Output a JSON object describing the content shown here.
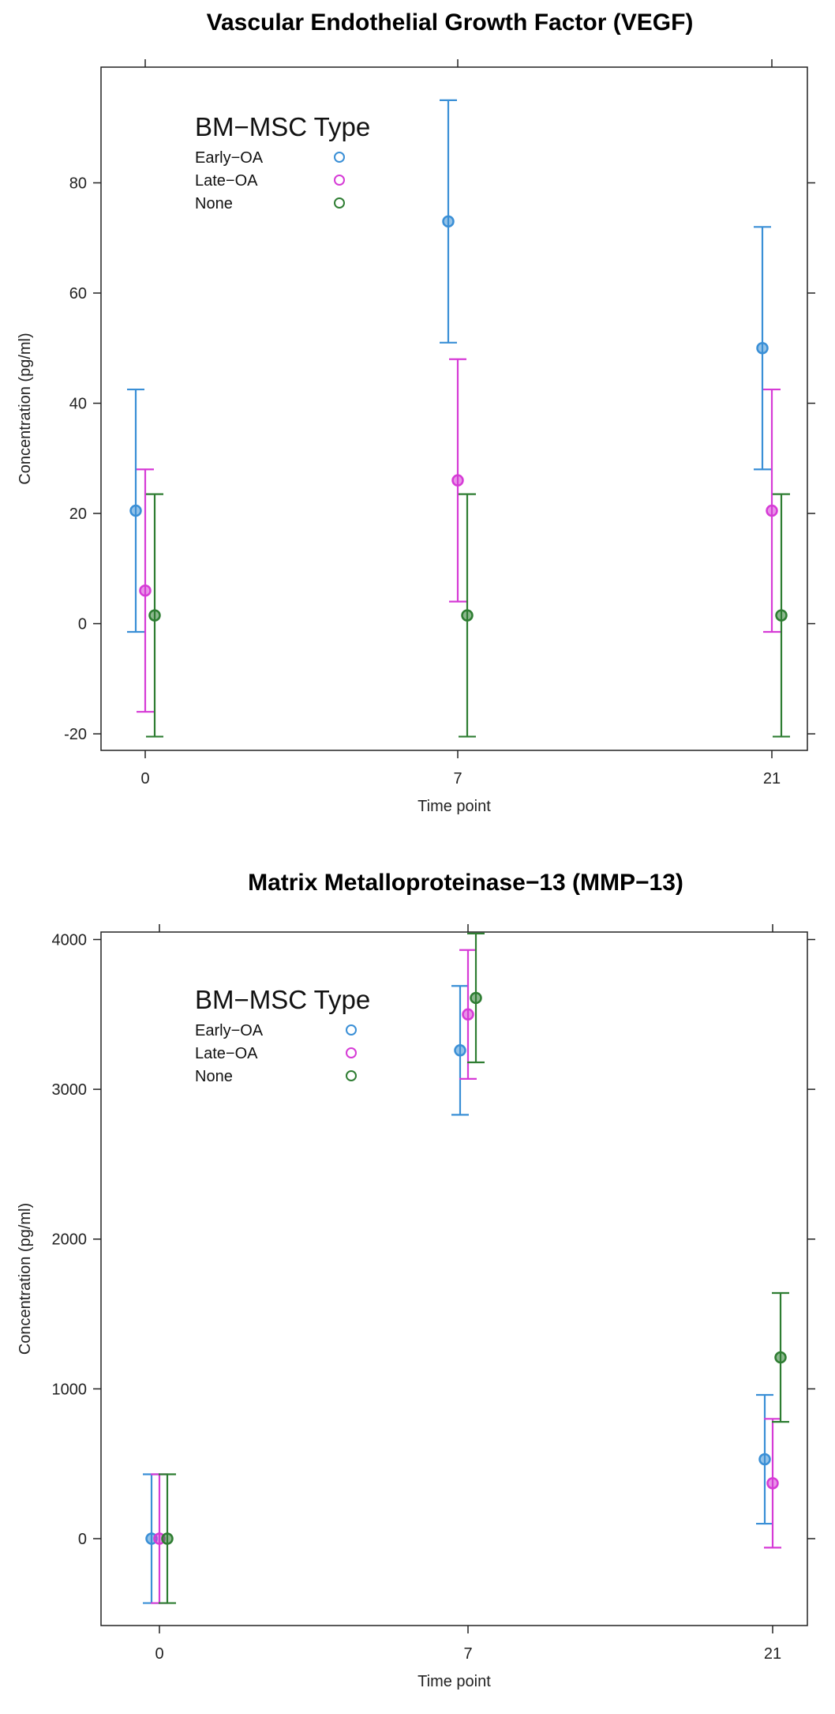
{
  "chart_data": [
    {
      "type": "scatter",
      "title": "Vascular Endothelial Growth Factor (VEGF)",
      "xlabel": "Time point",
      "ylabel": "Concentration (pg/ml)",
      "categories": [
        "0",
        "7",
        "21"
      ],
      "ylim": [
        -23,
        101
      ],
      "yticks": [
        -20,
        0,
        20,
        40,
        60,
        80
      ],
      "legend": {
        "title": "BM−MSC Type",
        "placement": "top-left"
      },
      "series": [
        {
          "name": "Early−OA",
          "color": "#3a8fd6",
          "values": [
            20.5,
            73.0,
            50.0
          ],
          "lower": [
            -1.5,
            51.0,
            28.0
          ],
          "upper": [
            42.5,
            95.0,
            72.0
          ]
        },
        {
          "name": "Late−OA",
          "color": "#d63bd6",
          "values": [
            6.0,
            26.0,
            20.5
          ],
          "lower": [
            -16.0,
            4.0,
            -1.5
          ],
          "upper": [
            28.0,
            48.0,
            42.5
          ]
        },
        {
          "name": "None",
          "color": "#2e7d32",
          "values": [
            1.5,
            1.5,
            1.5
          ],
          "lower": [
            -20.5,
            -20.5,
            -20.5
          ],
          "upper": [
            23.5,
            23.5,
            23.5
          ]
        }
      ]
    },
    {
      "type": "scatter",
      "title": "Matrix Metalloproteinase−13 (MMP−13)",
      "xlabel": "Time point",
      "ylabel": "Concentration (pg/ml)",
      "categories": [
        "0",
        "7",
        "21"
      ],
      "ylim": [
        -580,
        4050
      ],
      "yticks": [
        0,
        1000,
        2000,
        3000,
        4000
      ],
      "legend": {
        "title": "BM−MSC Type",
        "placement": "top-left"
      },
      "series": [
        {
          "name": "Early−OA",
          "color": "#3a8fd6",
          "values": [
            0,
            3260,
            530
          ],
          "lower": [
            -430,
            2830,
            100
          ],
          "upper": [
            430,
            3690,
            960
          ]
        },
        {
          "name": "Late−OA",
          "color": "#d63bd6",
          "values": [
            0,
            3500,
            370
          ],
          "lower": [
            -430,
            3070,
            -60
          ],
          "upper": [
            430,
            3930,
            800
          ]
        },
        {
          "name": "None",
          "color": "#2e7d32",
          "values": [
            0,
            3610,
            1210
          ],
          "lower": [
            -430,
            3180,
            780
          ],
          "upper": [
            430,
            4040,
            1640
          ]
        }
      ]
    }
  ]
}
